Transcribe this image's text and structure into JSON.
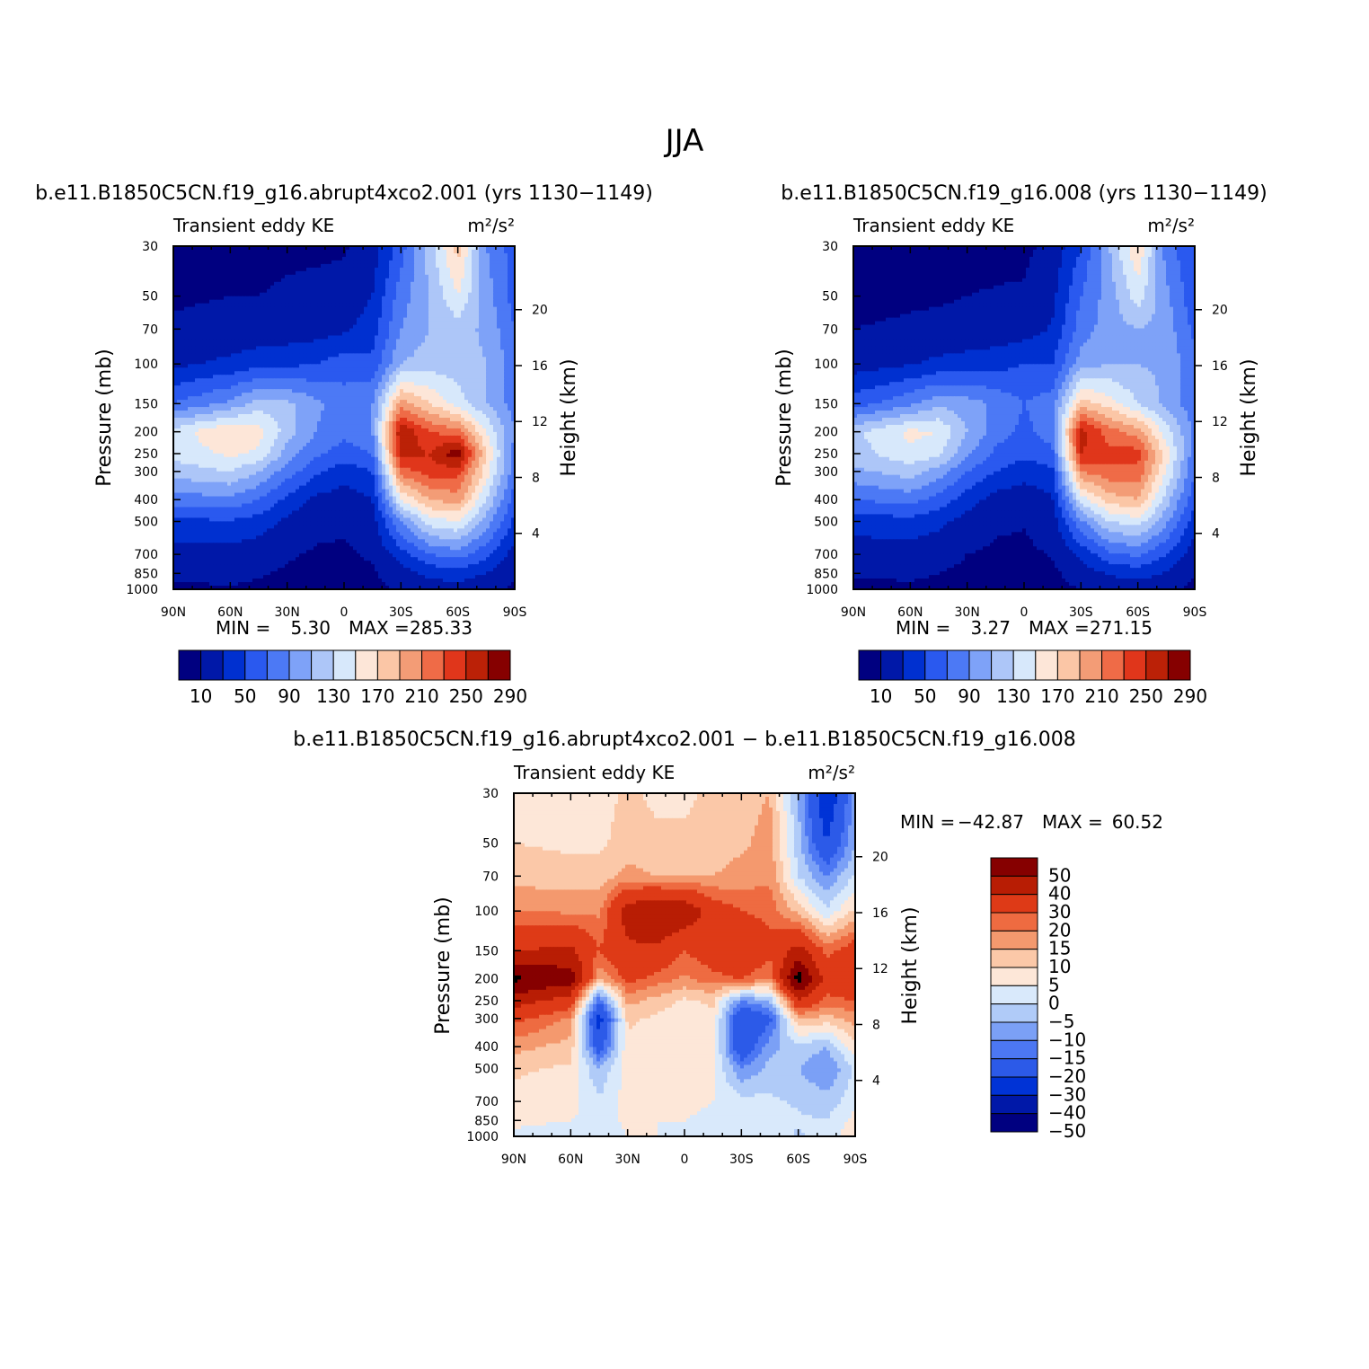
{
  "figure_title": "JJA",
  "colors": {
    "seq13": [
      "#000080",
      "#0018a8",
      "#0030d0",
      "#2a59ef",
      "#4c79f5",
      "#7ea2f8",
      "#adc6f8",
      "#d7e8fb",
      "#fde6d8",
      "#fbc6a6",
      "#f39c76",
      "#ef6b47",
      "#e0361b",
      "#bb2107",
      "#860000"
    ],
    "div14": [
      "#000080",
      "#0018a8",
      "#0033d6",
      "#2c5ae8",
      "#4c77f3",
      "#7ba0f6",
      "#b0cbf8",
      "#d9e9fb",
      "#fde7d8",
      "#fbc8a8",
      "#f4996e",
      "#ee6b41",
      "#de3a17",
      "#b81d04",
      "#860000"
    ]
  },
  "panels": [
    {
      "id": "panel-a",
      "title": "b.e11.B1850C5CN.f19_g16.abrupt4xco2.001 (yrs 1130−1149)",
      "left_label": "Transient eddy KE",
      "units": "m²/s²",
      "min_label": "MIN =",
      "min_value": "5.30",
      "max_label": "MAX =",
      "max_value": "285.33",
      "colorbar_labels": [
        "10",
        "50",
        "90",
        "130",
        "170",
        "210",
        "250",
        "290"
      ]
    },
    {
      "id": "panel-b",
      "title": "b.e11.B1850C5CN.f19_g16.008 (yrs 1130−1149)",
      "left_label": "Transient eddy KE",
      "units": "m²/s²",
      "min_label": "MIN =",
      "min_value": "3.27",
      "max_label": "MAX =",
      "max_value": "271.15",
      "colorbar_labels": [
        "10",
        "50",
        "90",
        "130",
        "170",
        "210",
        "250",
        "290"
      ]
    },
    {
      "id": "panel-c",
      "title": "b.e11.B1850C5CN.f19_g16.abrupt4xco2.001 − b.e11.B1850C5CN.f19_g16.008",
      "left_label": "Transient eddy KE",
      "units": "m²/s²",
      "min_label": "MIN =",
      "min_value": "−42.87",
      "max_label": "MAX =",
      "max_value": "60.52",
      "colorbar_labels": [
        "50",
        "40",
        "30",
        "20",
        "15",
        "10",
        "5",
        "0",
        "−5",
        "−10",
        "−15",
        "−20",
        "−30",
        "−40",
        "−50"
      ]
    }
  ],
  "chart_data": [
    {
      "type": "heatmap",
      "title": "b.e11.B1850C5CN.f19_g16.abrupt4xco2.001 (yrs 1130−1149)",
      "field": "Transient eddy KE",
      "units": "m²/s²",
      "xlabel": "",
      "ylabel": "Pressure (mb)",
      "ylabel_right": "Height (km)",
      "x_ticks": [
        "90N",
        "60N",
        "30N",
        "0",
        "30S",
        "60S",
        "90S"
      ],
      "y_ticks": [
        30,
        50,
        70,
        100,
        150,
        200,
        250,
        300,
        400,
        500,
        700,
        850,
        1000
      ],
      "height_ticks": [
        4,
        8,
        12,
        16,
        20
      ],
      "levels": [
        10,
        30,
        50,
        70,
        90,
        110,
        130,
        150,
        170,
        190,
        210,
        230,
        250,
        270,
        290
      ],
      "min": 5.3,
      "max": 285.33,
      "lat": [
        90,
        60,
        45,
        30,
        15,
        0,
        -15,
        -30,
        -45,
        -60,
        -75,
        -90
      ],
      "pressure": [
        30,
        50,
        70,
        100,
        150,
        200,
        250,
        300,
        400,
        500,
        700,
        850,
        1000
      ],
      "z": [
        [
          5,
          6,
          6,
          7,
          7,
          8,
          20,
          60,
          120,
          180,
          90,
          60
        ],
        [
          8,
          10,
          10,
          12,
          14,
          16,
          30,
          80,
          110,
          150,
          100,
          60
        ],
        [
          12,
          15,
          17,
          18,
          20,
          26,
          40,
          90,
          110,
          120,
          105,
          70
        ],
        [
          25,
          35,
          42,
          45,
          50,
          60,
          55,
          110,
          120,
          120,
          110,
          80
        ],
        [
          70,
          95,
          120,
          115,
          95,
          80,
          90,
          200,
          170,
          140,
          110,
          80
        ],
        [
          140,
          170,
          160,
          120,
          90,
          75,
          90,
          270,
          230,
          220,
          150,
          90
        ],
        [
          135,
          155,
          145,
          100,
          75,
          60,
          70,
          260,
          250,
          285,
          170,
          80
        ],
        [
          120,
          130,
          110,
          80,
          55,
          40,
          50,
          220,
          240,
          240,
          160,
          75
        ],
        [
          80,
          85,
          70,
          45,
          25,
          20,
          30,
          150,
          190,
          200,
          130,
          60
        ],
        [
          45,
          48,
          40,
          25,
          15,
          12,
          20,
          90,
          140,
          150,
          100,
          45
        ],
        [
          20,
          22,
          18,
          12,
          8,
          8,
          12,
          40,
          70,
          80,
          55,
          20
        ],
        [
          12,
          13,
          11,
          8,
          6,
          6,
          8,
          20,
          35,
          40,
          30,
          12
        ],
        [
          8,
          9,
          8,
          6,
          5,
          6,
          6,
          12,
          20,
          22,
          15,
          7
        ]
      ]
    },
    {
      "type": "heatmap",
      "title": "b.e11.B1850C5CN.f19_g16.008 (yrs 1130−1149)",
      "field": "Transient eddy KE",
      "units": "m²/s²",
      "xlabel": "",
      "ylabel": "Pressure (mb)",
      "ylabel_right": "Height (km)",
      "x_ticks": [
        "90N",
        "60N",
        "30N",
        "0",
        "30S",
        "60S",
        "90S"
      ],
      "y_ticks": [
        30,
        50,
        70,
        100,
        150,
        200,
        250,
        300,
        400,
        500,
        700,
        850,
        1000
      ],
      "height_ticks": [
        4,
        8,
        12,
        16,
        20
      ],
      "levels": [
        10,
        30,
        50,
        70,
        90,
        110,
        130,
        150,
        170,
        190,
        210,
        230,
        250,
        270,
        290
      ],
      "min": 3.27,
      "max": 271.15,
      "lat": [
        90,
        60,
        45,
        30,
        15,
        0,
        -15,
        -30,
        -45,
        -60,
        -75,
        -90
      ],
      "pressure": [
        30,
        50,
        70,
        100,
        150,
        200,
        250,
        300,
        400,
        500,
        700,
        850,
        1000
      ],
      "z": [
        [
          4,
          5,
          5,
          6,
          6,
          6,
          15,
          50,
          110,
          170,
          80,
          50
        ],
        [
          6,
          8,
          8,
          10,
          11,
          12,
          25,
          70,
          100,
          140,
          95,
          55
        ],
        [
          10,
          12,
          14,
          16,
          17,
          20,
          32,
          80,
          100,
          110,
          100,
          65
        ],
        [
          20,
          28,
          35,
          38,
          42,
          50,
          50,
          100,
          110,
          110,
          105,
          75
        ],
        [
          60,
          85,
          105,
          100,
          85,
          70,
          80,
          180,
          160,
          130,
          105,
          75
        ],
        [
          125,
          155,
          150,
          110,
          80,
          65,
          80,
          260,
          220,
          200,
          140,
          85
        ],
        [
          120,
          145,
          135,
          95,
          65,
          55,
          65,
          250,
          235,
          240,
          160,
          75
        ],
        [
          105,
          120,
          100,
          70,
          50,
          38,
          45,
          210,
          225,
          225,
          150,
          70
        ],
        [
          70,
          78,
          62,
          40,
          22,
          18,
          28,
          140,
          180,
          190,
          120,
          55
        ],
        [
          40,
          42,
          35,
          22,
          13,
          11,
          18,
          85,
          130,
          140,
          95,
          40
        ],
        [
          18,
          20,
          16,
          10,
          7,
          7,
          11,
          35,
          65,
          75,
          50,
          18
        ],
        [
          11,
          12,
          10,
          7,
          5,
          5,
          7,
          18,
          32,
          38,
          28,
          10
        ],
        [
          7,
          8,
          7,
          5,
          4,
          5,
          5,
          10,
          18,
          20,
          14,
          6
        ]
      ]
    },
    {
      "type": "heatmap",
      "title": "b.e11.B1850C5CN.f19_g16.abrupt4xco2.001 − b.e11.B1850C5CN.f19_g16.008",
      "field": "Transient eddy KE",
      "units": "m²/s²",
      "xlabel": "",
      "ylabel": "Pressure (mb)",
      "ylabel_right": "Height (km)",
      "x_ticks": [
        "90N",
        "60N",
        "30N",
        "0",
        "30S",
        "60S",
        "90S"
      ],
      "y_ticks": [
        30,
        50,
        70,
        100,
        150,
        200,
        250,
        300,
        400,
        500,
        700,
        850,
        1000
      ],
      "height_ticks": [
        4,
        8,
        12,
        16,
        20
      ],
      "levels": [
        -50,
        -40,
        -30,
        -20,
        -15,
        -10,
        -5,
        0,
        5,
        10,
        15,
        20,
        30,
        40,
        50
      ],
      "min": -42.87,
      "max": 60.52,
      "lat": [
        90,
        60,
        45,
        30,
        15,
        0,
        -15,
        -30,
        -45,
        -60,
        -75,
        -90
      ],
      "pressure": [
        30,
        50,
        70,
        100,
        150,
        200,
        250,
        300,
        400,
        500,
        700,
        850,
        1000
      ],
      "z": [
        [
          4,
          3,
          3,
          6,
          4,
          4,
          6,
          8,
          10,
          -10,
          -40,
          -12
        ],
        [
          5,
          4,
          4,
          7,
          6,
          6,
          7,
          9,
          12,
          -8,
          -30,
          -10
        ],
        [
          8,
          7,
          7,
          12,
          10,
          10,
          10,
          12,
          14,
          -5,
          -15,
          -4
        ],
        [
          15,
          14,
          14,
          35,
          40,
          38,
          25,
          20,
          18,
          8,
          -4,
          6
        ],
        [
          30,
          32,
          20,
          28,
          28,
          20,
          25,
          30,
          22,
          34,
          18,
          25
        ],
        [
          52,
          45,
          10,
          22,
          18,
          14,
          18,
          20,
          15,
          55,
          25,
          30
        ],
        [
          35,
          25,
          -20,
          12,
          8,
          4,
          6,
          -15,
          -10,
          30,
          18,
          20
        ],
        [
          22,
          14,
          -35,
          6,
          4,
          2,
          4,
          -30,
          -22,
          10,
          8,
          12
        ],
        [
          12,
          8,
          -25,
          4,
          3,
          1,
          2,
          -28,
          -12,
          -6,
          -10,
          4
        ],
        [
          6,
          4,
          -10,
          3,
          2,
          2,
          1,
          -15,
          -8,
          -10,
          -15,
          -4
        ],
        [
          3,
          2,
          -4,
          2,
          1,
          1,
          0,
          -3,
          -4,
          -6,
          -8,
          -2
        ],
        [
          1,
          0,
          -2,
          1,
          0,
          0,
          -1,
          -1,
          -2,
          -4,
          -5,
          2
        ],
        [
          -1,
          -2,
          -3,
          0,
          0,
          -2,
          -1,
          -1,
          -2,
          -6,
          -2,
          3
        ]
      ]
    }
  ]
}
